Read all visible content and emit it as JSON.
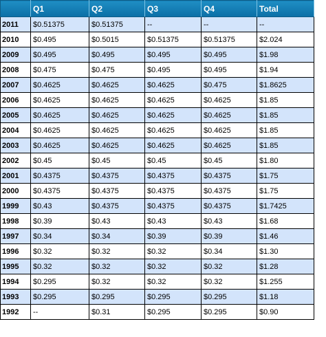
{
  "table": {
    "headers": [
      "",
      "Q1",
      "Q2",
      "Q3",
      "Q4",
      "Total"
    ],
    "rows": [
      {
        "year": "2011",
        "q1": "$0.51375",
        "q2": "$0.51375",
        "q3": "--",
        "q4": "--",
        "total": "--"
      },
      {
        "year": "2010",
        "q1": "$0.495",
        "q2": "$0.5015",
        "q3": "$0.51375",
        "q4": "$0.51375",
        "total": "$2.024"
      },
      {
        "year": "2009",
        "q1": "$0.495",
        "q2": "$0.495",
        "q3": "$0.495",
        "q4": "$0.495",
        "total": "$1.98"
      },
      {
        "year": "2008",
        "q1": "$0.475",
        "q2": "$0.475",
        "q3": "$0.495",
        "q4": "$0.495",
        "total": "$1.94"
      },
      {
        "year": "2007",
        "q1": "$0.4625",
        "q2": "$0.4625",
        "q3": "$0.4625",
        "q4": "$0.475",
        "total": "$1.8625"
      },
      {
        "year": "2006",
        "q1": "$0.4625",
        "q2": "$0.4625",
        "q3": "$0.4625",
        "q4": "$0.4625",
        "total": "$1.85"
      },
      {
        "year": "2005",
        "q1": "$0.4625",
        "q2": "$0.4625",
        "q3": "$0.4625",
        "q4": "$0.4625",
        "total": "$1.85"
      },
      {
        "year": "2004",
        "q1": "$0.4625",
        "q2": "$0.4625",
        "q3": "$0.4625",
        "q4": "$0.4625",
        "total": "$1.85"
      },
      {
        "year": "2003",
        "q1": "$0.4625",
        "q2": "$0.4625",
        "q3": "$0.4625",
        "q4": "$0.4625",
        "total": "$1.85"
      },
      {
        "year": "2002",
        "q1": "$0.45",
        "q2": "$0.45",
        "q3": "$0.45",
        "q4": "$0.45",
        "total": "$1.80"
      },
      {
        "year": "2001",
        "q1": "$0.4375",
        "q2": "$0.4375",
        "q3": "$0.4375",
        "q4": "$0.4375",
        "total": "$1.75"
      },
      {
        "year": "2000",
        "q1": "$0.4375",
        "q2": "$0.4375",
        "q3": "$0.4375",
        "q4": "$0.4375",
        "total": "$1.75"
      },
      {
        "year": "1999",
        "q1": "$0.43",
        "q2": "$0.4375",
        "q3": "$0.4375",
        "q4": "$0.4375",
        "total": "$1.7425"
      },
      {
        "year": "1998",
        "q1": "$0.39",
        "q2": "$0.43",
        "q3": "$0.43",
        "q4": "$0.43",
        "total": "$1.68"
      },
      {
        "year": "1997",
        "q1": "$0.34",
        "q2": "$0.34",
        "q3": "$0.39",
        "q4": "$0.39",
        "total": "$1.46"
      },
      {
        "year": "1996",
        "q1": "$0.32",
        "q2": "$0.32",
        "q3": "$0.32",
        "q4": "$0.34",
        "total": "$1.30"
      },
      {
        "year": "1995",
        "q1": "$0.32",
        "q2": "$0.32",
        "q3": "$0.32",
        "q4": "$0.32",
        "total": "$1.28"
      },
      {
        "year": "1994",
        "q1": "$0.295",
        "q2": "$0.32",
        "q3": "$0.32",
        "q4": "$0.32",
        "total": "$1.255"
      },
      {
        "year": "1993",
        "q1": "$0.295",
        "q2": "$0.295",
        "q3": "$0.295",
        "q4": "$0.295",
        "total": "$1.18"
      },
      {
        "year": "1992",
        "q1": "--",
        "q2": "$0.31",
        "q3": "$0.295",
        "q4": "$0.295",
        "total": "$0.90"
      }
    ]
  }
}
